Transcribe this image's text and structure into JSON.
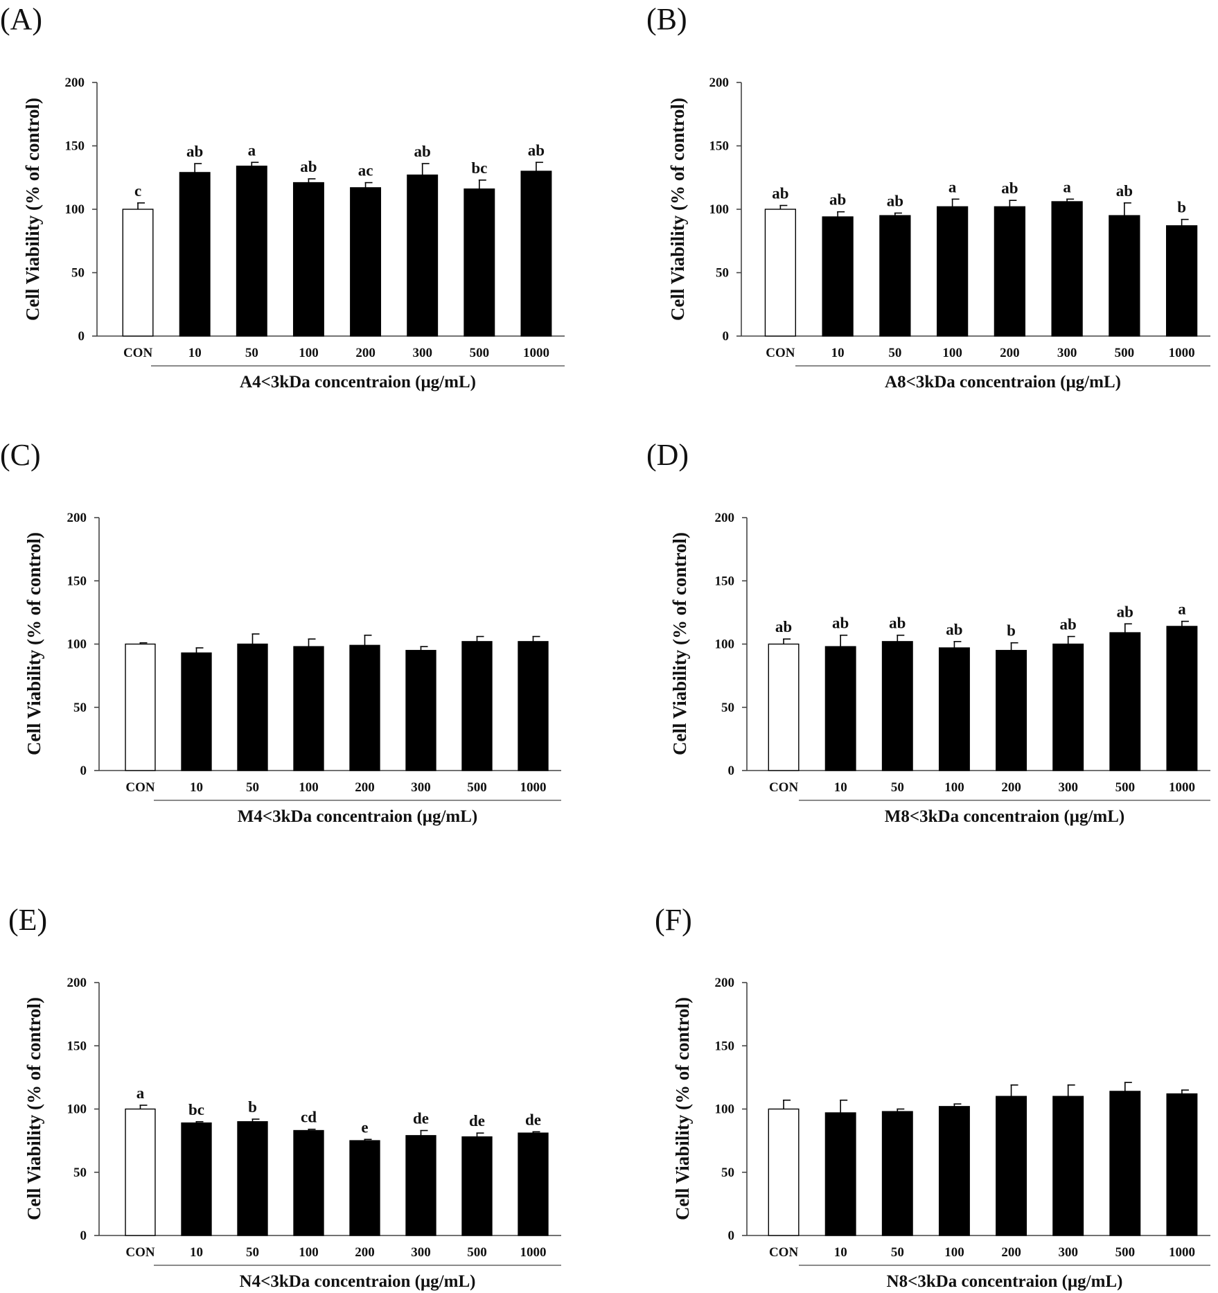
{
  "chart_data": [
    {
      "panel": "(A)",
      "type": "bar",
      "categories": [
        "CON",
        "10",
        "50",
        "100",
        "200",
        "300",
        "500",
        "1000"
      ],
      "values": [
        100,
        129,
        134,
        121,
        117,
        127,
        116,
        130
      ],
      "errors": [
        5,
        7,
        3,
        3,
        4,
        9,
        7,
        7
      ],
      "labels": [
        "c",
        "ab",
        "a",
        "ab",
        "ac",
        "ab",
        "bc",
        "ab"
      ],
      "xlabel": "A4<3kDa concentraion (μg/mL)",
      "ylabel": "Cell Viability (% of control)",
      "ylim": [
        0,
        200
      ],
      "yticks": [
        0,
        50,
        100,
        150,
        200
      ]
    },
    {
      "panel": "(B)",
      "type": "bar",
      "categories": [
        "CON",
        "10",
        "50",
        "100",
        "200",
        "300",
        "500",
        "1000"
      ],
      "values": [
        100,
        94,
        95,
        102,
        102,
        106,
        95,
        87
      ],
      "errors": [
        3,
        4,
        2,
        6,
        5,
        2,
        10,
        5
      ],
      "labels": [
        "ab",
        "ab",
        "ab",
        "a",
        "ab",
        "a",
        "ab",
        "b"
      ],
      "xlabel": "A8<3kDa concentraion (μg/mL)",
      "ylabel": "Cell Viability (% of control)",
      "ylim": [
        0,
        200
      ],
      "yticks": [
        0,
        50,
        100,
        150,
        200
      ]
    },
    {
      "panel": "(C)",
      "type": "bar",
      "categories": [
        "CON",
        "10",
        "50",
        "100",
        "200",
        "300",
        "500",
        "1000"
      ],
      "values": [
        100,
        93,
        100,
        98,
        99,
        95,
        102,
        102
      ],
      "errors": [
        1,
        4,
        8,
        6,
        8,
        3,
        4,
        4
      ],
      "labels": [
        "",
        "",
        "",
        "",
        "",
        "",
        "",
        ""
      ],
      "xlabel": "M4<3kDa concentraion (μg/mL)",
      "ylabel": "Cell Viability (% of control)",
      "ylim": [
        0,
        200
      ],
      "yticks": [
        0,
        50,
        100,
        150,
        200
      ]
    },
    {
      "panel": "(D)",
      "type": "bar",
      "categories": [
        "CON",
        "10",
        "50",
        "100",
        "200",
        "300",
        "500",
        "1000"
      ],
      "values": [
        100,
        98,
        102,
        97,
        95,
        100,
        109,
        114
      ],
      "errors": [
        4,
        9,
        5,
        5,
        6,
        6,
        7,
        4
      ],
      "labels": [
        "ab",
        "ab",
        "ab",
        "ab",
        "b",
        "ab",
        "ab",
        "a"
      ],
      "xlabel": "M8<3kDa concentraion (μg/mL)",
      "ylabel": "Cell Viability (% of control)",
      "ylim": [
        0,
        200
      ],
      "yticks": [
        0,
        50,
        100,
        150,
        200
      ]
    },
    {
      "panel": "(E)",
      "type": "bar",
      "categories": [
        "CON",
        "10",
        "50",
        "100",
        "200",
        "300",
        "500",
        "1000"
      ],
      "values": [
        100,
        89,
        90,
        83,
        75,
        79,
        78,
        81
      ],
      "errors": [
        3,
        1,
        2,
        1,
        1,
        4,
        3,
        1
      ],
      "labels": [
        "a",
        "bc",
        "b",
        "cd",
        "e",
        "de",
        "de",
        "de"
      ],
      "xlabel": "N4<3kDa concentraion (μg/mL)",
      "ylabel": "Cell Viability (% of control)",
      "ylim": [
        0,
        200
      ],
      "yticks": [
        0,
        50,
        100,
        150,
        200
      ]
    },
    {
      "panel": "(F)",
      "type": "bar",
      "categories": [
        "CON",
        "10",
        "50",
        "100",
        "200",
        "300",
        "500",
        "1000"
      ],
      "values": [
        100,
        97,
        98,
        102,
        110,
        110,
        114,
        112
      ],
      "errors": [
        7,
        10,
        2,
        2,
        9,
        9,
        7,
        3
      ],
      "labels": [
        "",
        "",
        "",
        "",
        "",
        "",
        "",
        ""
      ],
      "xlabel": "N8<3kDa concentraion (μg/mL)",
      "ylabel": "Cell Viability (% of control)",
      "ylim": [
        0,
        200
      ],
      "yticks": [
        0,
        50,
        100,
        150,
        200
      ]
    }
  ],
  "colors": {
    "control_bar": "#ffffff",
    "treatment_bar": "#000000",
    "axis": "#444444",
    "significance_text": "#333333"
  }
}
